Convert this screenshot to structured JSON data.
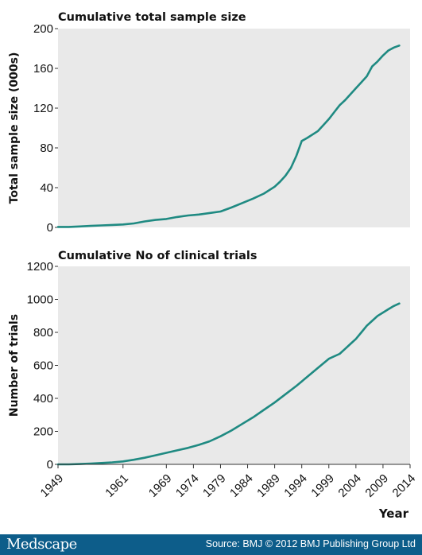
{
  "chart_data": [
    {
      "type": "line",
      "title": "Cumulative total sample size",
      "ylabel": "Total sample size (000s)",
      "xlabel": "",
      "ylim": [
        0,
        200
      ],
      "yticks": [
        0,
        40,
        80,
        120,
        160,
        200
      ],
      "xlim": [
        1949,
        2014
      ],
      "grid": false,
      "background": "#e9e9e9",
      "line_color": "#1f8a82",
      "series": [
        {
          "x": [
            1949,
            1951,
            1953,
            1955,
            1957,
            1959,
            1961,
            1963,
            1965,
            1967,
            1969,
            1971,
            1973,
            1975,
            1977,
            1979,
            1981,
            1983,
            1985,
            1987,
            1989,
            1990,
            1991,
            1992,
            1993,
            1994,
            1995,
            1997,
            1998,
            1999,
            2000,
            2001,
            2002,
            2003,
            2004,
            2005,
            2006,
            2007,
            2008,
            2009,
            2010,
            2011,
            2012
          ],
          "y": [
            0.5,
            0.5,
            1,
            1.5,
            2,
            2.5,
            3,
            4,
            6,
            7.5,
            8.5,
            10.5,
            12,
            13,
            14.5,
            16,
            20,
            24.5,
            29,
            34,
            41,
            46,
            52,
            60,
            72,
            87,
            90,
            97,
            103,
            109,
            116,
            123,
            128,
            134,
            140,
            146,
            152,
            162,
            167,
            173,
            178,
            181,
            183
          ]
        }
      ]
    },
    {
      "type": "line",
      "title": "Cumulative No of clinical trials",
      "ylabel": "Number of trials",
      "xlabel": "Year",
      "ylim": [
        0,
        1200
      ],
      "yticks": [
        0,
        200,
        400,
        600,
        800,
        1000,
        1200
      ],
      "xlim": [
        1949,
        2014
      ],
      "xticks": [
        1949,
        1961,
        1969,
        1974,
        1979,
        1984,
        1989,
        1994,
        1999,
        2004,
        2009,
        2014
      ],
      "grid": false,
      "background": "#e9e9e9",
      "line_color": "#1f8a82",
      "series": [
        {
          "x": [
            1949,
            1951,
            1953,
            1955,
            1957,
            1959,
            1961,
            1963,
            1965,
            1967,
            1969,
            1971,
            1973,
            1975,
            1977,
            1979,
            1981,
            1983,
            1985,
            1987,
            1989,
            1991,
            1993,
            1995,
            1997,
            1999,
            2001,
            2002,
            2003,
            2004,
            2005,
            2006,
            2007,
            2008,
            2009,
            2010,
            2011,
            2012
          ],
          "y": [
            0,
            0,
            2,
            5,
            8,
            12,
            18,
            28,
            40,
            55,
            70,
            85,
            100,
            118,
            140,
            170,
            205,
            245,
            285,
            330,
            375,
            425,
            475,
            530,
            585,
            640,
            670,
            700,
            730,
            760,
            800,
            840,
            870,
            900,
            920,
            940,
            960,
            975
          ]
        }
      ]
    }
  ],
  "footer": {
    "logo": "Medscape",
    "source": "Source: BMJ © 2012 BMJ Publishing Group Ltd"
  }
}
